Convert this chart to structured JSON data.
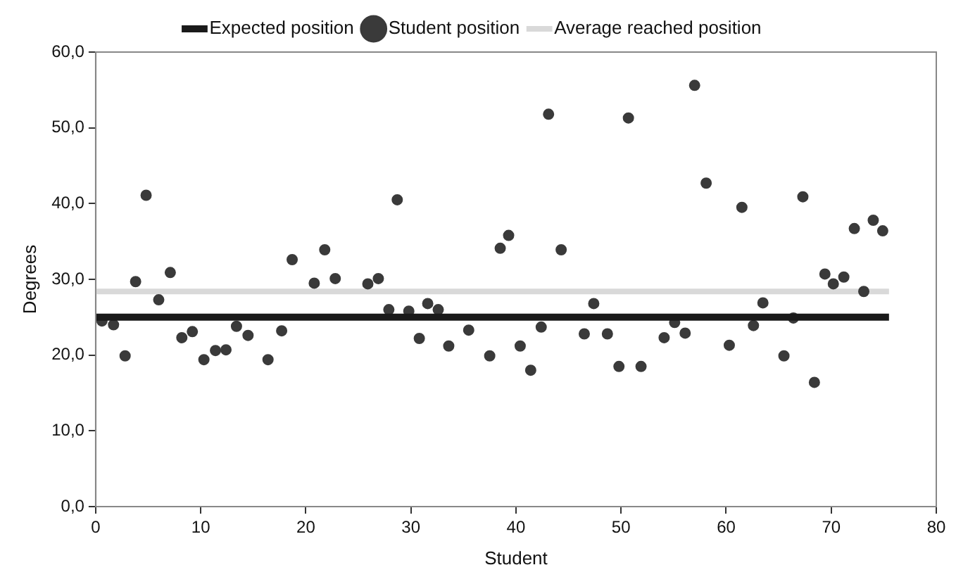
{
  "chart_data": {
    "type": "scatter",
    "xlabel": "Student",
    "ylabel": "Degrees",
    "xlim": [
      0,
      80
    ],
    "xticks": [
      0,
      10,
      20,
      30,
      40,
      50,
      60,
      70,
      80
    ],
    "ylim": [
      0,
      60
    ],
    "yticks": [
      {
        "value": 0,
        "label": "0,0"
      },
      {
        "value": 10,
        "label": "10,0"
      },
      {
        "value": 20,
        "label": "20,0"
      },
      {
        "value": 30,
        "label": "30,0"
      },
      {
        "value": 40,
        "label": "40,0"
      },
      {
        "value": 50,
        "label": "50,0"
      },
      {
        "value": 60,
        "label": "60,0"
      }
    ],
    "grid": false,
    "legend": "top",
    "series": [
      {
        "name": "Expected position",
        "type": "line",
        "marker": "none",
        "color": "#1a1a1a",
        "x": [
          0,
          75.5
        ],
        "values": [
          25,
          25
        ]
      },
      {
        "name": "Student position",
        "marker": "circle",
        "color": "#3a3a3a",
        "x": [
          0.6,
          1.7,
          2.8,
          3.8,
          4.8,
          6.0,
          7.1,
          8.2,
          9.2,
          10.3,
          11.4,
          12.4,
          13.4,
          14.5,
          16.4,
          17.7,
          18.7,
          20.8,
          21.8,
          22.8,
          25.9,
          26.9,
          27.9,
          28.7,
          29.8,
          30.8,
          31.6,
          32.6,
          33.6,
          35.5,
          37.5,
          38.5,
          39.3,
          40.4,
          41.4,
          42.4,
          43.1,
          44.3,
          46.5,
          47.4,
          48.7,
          49.8,
          50.7,
          51.9,
          54.1,
          55.1,
          56.1,
          57.0,
          58.1,
          60.3,
          61.5,
          62.6,
          63.5,
          65.5,
          66.4,
          67.3,
          68.4,
          69.4,
          70.2,
          71.2,
          72.2,
          73.1,
          74.0,
          74.9
        ],
        "values": [
          24.5,
          24.0,
          19.9,
          29.7,
          41.1,
          27.3,
          30.9,
          22.3,
          23.1,
          19.4,
          20.6,
          20.7,
          23.8,
          22.6,
          19.4,
          23.2,
          32.6,
          29.5,
          33.9,
          30.1,
          29.4,
          30.1,
          26.0,
          40.5,
          25.8,
          22.2,
          26.8,
          26.0,
          21.2,
          23.3,
          19.9,
          34.1,
          35.8,
          21.2,
          18.0,
          23.7,
          51.8,
          33.9,
          22.8,
          26.8,
          22.8,
          18.5,
          51.3,
          18.5,
          22.3,
          24.3,
          22.9,
          55.6,
          42.7,
          21.3,
          39.5,
          23.9,
          26.9,
          19.9,
          24.9,
          40.9,
          16.4,
          30.7,
          29.4,
          30.3,
          36.7,
          28.4,
          37.8,
          36.4
        ]
      },
      {
        "name": "Average reached position",
        "type": "line",
        "marker": "none",
        "color": "#d9d9d9",
        "x": [
          0,
          75.5
        ],
        "values": [
          28.4,
          28.4
        ]
      }
    ]
  }
}
